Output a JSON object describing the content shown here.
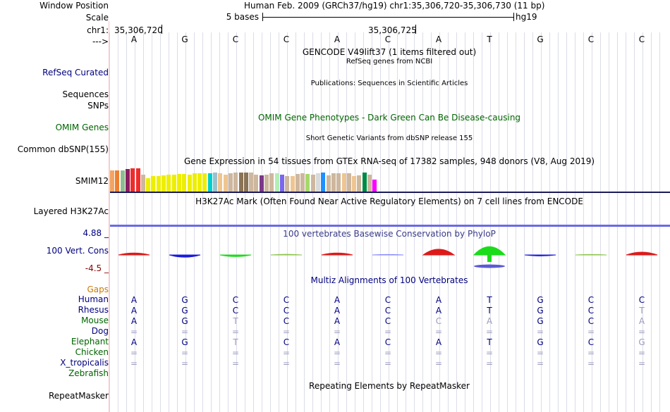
{
  "header": {
    "window_position_label": "Window Position",
    "window_position_value": "Human Feb. 2009 (GRCh37/hg19)   chr1:35,306,720-35,306,730 (11 bp)",
    "scale_label": "Scale",
    "scale_value": "5 bases",
    "scale_assembly": "hg19",
    "chrom_label": "chr1:",
    "coord_left": "35,306,720",
    "coord_mid": "35,306,725",
    "strand_label": "--->",
    "bases": [
      "A",
      "G",
      "C",
      "C",
      "A",
      "C",
      "A",
      "T",
      "G",
      "C",
      "C"
    ]
  },
  "tracks": {
    "gencode_title": "GENCODE V49lift37 (1 items filtered out)",
    "refseq_label": "RefSeq Curated",
    "refseq_title": "RefSeq genes from NCBI",
    "sequences_label": "Sequences",
    "publications_title": "Publications: Sequences in Scientific Articles",
    "snps_label": "SNPs",
    "omim_title": "OMIM Gene Phenotypes - Dark Green Can Be Disease-causing",
    "omim_label": "OMIM Genes",
    "dbsnp_title": "Short Genetic Variants from dbSNP release 155",
    "dbsnp_label": "Common dbSNP(155)",
    "gtex_title": "Gene Expression in 54 tissues from GTEx RNA-seq of 17382 samples, 948 donors (V8, Aug 2019)",
    "gtex_label": "SMIM12",
    "h3k27ac_title": "H3K27Ac Mark (Often Found Near Active Regulatory Elements) on 7 cell lines from ENCODE",
    "h3k27ac_label": "Layered H3K27Ac",
    "phylop_title": "100 vertebrates Basewise Conservation by PhyloP",
    "phylop_max": "4.88 _",
    "phylop_label": "100 Vert. Cons",
    "phylop_min": "-4.5 _",
    "multiz_title": "Multiz Alignments of 100 Vertebrates",
    "gaps_label": "Gaps",
    "repeat_title": "Repeating Elements by RepeatMasker",
    "repeat_label": "RepeatMasker"
  },
  "gtex_bars": [
    {
      "h": 0.84,
      "c": "#f4a460"
    },
    {
      "h": 0.84,
      "c": "#ee7f32"
    },
    {
      "h": 0.82,
      "c": "#8fbc8f"
    },
    {
      "h": 0.88,
      "c": "#8b1c62"
    },
    {
      "h": 0.92,
      "c": "#ee2c2c"
    },
    {
      "h": 0.92,
      "c": "#ee2c2c"
    },
    {
      "h": 0.68,
      "c": "#cdb79e"
    },
    {
      "h": 0.52,
      "c": "#eeee00"
    },
    {
      "h": 0.6,
      "c": "#eeee00"
    },
    {
      "h": 0.6,
      "c": "#eeee00"
    },
    {
      "h": 0.64,
      "c": "#eeee00"
    },
    {
      "h": 0.66,
      "c": "#eeee00"
    },
    {
      "h": 0.68,
      "c": "#eeee00"
    },
    {
      "h": 0.7,
      "c": "#eeee00"
    },
    {
      "h": 0.7,
      "c": "#eeee00"
    },
    {
      "h": 0.68,
      "c": "#eeee00"
    },
    {
      "h": 0.72,
      "c": "#eeee00"
    },
    {
      "h": 0.72,
      "c": "#eeee00"
    },
    {
      "h": 0.72,
      "c": "#eeee00"
    },
    {
      "h": 0.72,
      "c": "#00cdcd"
    },
    {
      "h": 0.74,
      "c": "#9ac0cd"
    },
    {
      "h": 0.72,
      "c": "#eec591"
    },
    {
      "h": 0.68,
      "c": "#eec591"
    },
    {
      "h": 0.72,
      "c": "#cdb79e"
    },
    {
      "h": 0.74,
      "c": "#cdb79e"
    },
    {
      "h": 0.74,
      "c": "#8b7355"
    },
    {
      "h": 0.74,
      "c": "#8b7355"
    },
    {
      "h": 0.74,
      "c": "#cdb79e"
    },
    {
      "h": 0.68,
      "c": "#cdb79e"
    },
    {
      "h": 0.64,
      "c": "#7a378b"
    },
    {
      "h": 0.68,
      "c": "#cdb79e"
    },
    {
      "h": 0.72,
      "c": "#cdb79e"
    },
    {
      "h": 0.72,
      "c": "#b4eeb4"
    },
    {
      "h": 0.68,
      "c": "#7a67ee"
    },
    {
      "h": 0.62,
      "c": "#cdb79e"
    },
    {
      "h": 0.6,
      "c": "#eec591"
    },
    {
      "h": 0.7,
      "c": "#cdb79e"
    },
    {
      "h": 0.72,
      "c": "#cdb79e"
    },
    {
      "h": 0.7,
      "c": "#a6d96a"
    },
    {
      "h": 0.66,
      "c": "#cdb79e"
    },
    {
      "h": 0.72,
      "c": "#d9d9d9"
    },
    {
      "h": 0.74,
      "c": "#1e90ff"
    },
    {
      "h": 0.64,
      "c": "#cdb79e"
    },
    {
      "h": 0.72,
      "c": "#cdb79e"
    },
    {
      "h": 0.72,
      "c": "#cdb79e"
    },
    {
      "h": 0.72,
      "c": "#eec591"
    },
    {
      "h": 0.72,
      "c": "#cdb79e"
    },
    {
      "h": 0.62,
      "c": "#eec591"
    },
    {
      "h": 0.64,
      "c": "#cdb79e"
    },
    {
      "h": 0.74,
      "c": "#008b45"
    },
    {
      "h": 0.68,
      "c": "#cdb79e"
    },
    {
      "h": 0.48,
      "c": "#ff00ff"
    }
  ],
  "phylop_scores": [
    {
      "v": 0.6,
      "c": "#dd1a1a"
    },
    {
      "v": -0.7,
      "c": "#1a1add"
    },
    {
      "v": -0.5,
      "c": "#1adc1a"
    },
    {
      "v": 0.2,
      "c": "#8bc34a"
    },
    {
      "v": 0.6,
      "c": "#dd1a1a"
    },
    {
      "v": 0.15,
      "c": "#8888ff"
    },
    {
      "v": 1.8,
      "c": "#dd1a1a"
    },
    {
      "v": 2.6,
      "c": "#1adc1a"
    },
    {
      "v": -0.3,
      "c": "#1a1add"
    },
    {
      "v": 0.15,
      "c": "#8bc34a"
    },
    {
      "v": 0.9,
      "c": "#dd1a1a"
    }
  ],
  "alignment": [
    {
      "species": "Human",
      "color": "#000080",
      "bases": [
        "A",
        "G",
        "C",
        "C",
        "A",
        "C",
        "A",
        "T",
        "G",
        "C",
        "C"
      ],
      "weak": []
    },
    {
      "species": "Rhesus",
      "color": "#000080",
      "bases": [
        "A",
        "G",
        "C",
        "C",
        "A",
        "C",
        "A",
        "T",
        "G",
        "C",
        "T"
      ],
      "weak": [
        10
      ]
    },
    {
      "species": "Mouse",
      "color": "#006400",
      "bases": [
        "A",
        "G",
        "T",
        "C",
        "A",
        "C",
        "C",
        "A",
        "G",
        "C",
        "A"
      ],
      "weak": [
        2,
        6,
        7,
        10
      ]
    },
    {
      "species": "Dog",
      "color": "#000080",
      "bases": [
        "=",
        "=",
        "=",
        "=",
        "=",
        "=",
        "=",
        "=",
        "=",
        "=",
        "="
      ],
      "weak": [
        0,
        1,
        2,
        3,
        4,
        5,
        6,
        7,
        8,
        9,
        10
      ]
    },
    {
      "species": "Elephant",
      "color": "#006400",
      "bases": [
        "A",
        "G",
        "T",
        "C",
        "A",
        "C",
        "A",
        "T",
        "G",
        "C",
        "G"
      ],
      "weak": [
        2,
        10
      ]
    },
    {
      "species": "Chicken",
      "color": "#006400",
      "bases": [
        "=",
        "=",
        "=",
        "=",
        "=",
        "=",
        "=",
        "=",
        "=",
        "=",
        "="
      ],
      "weak": [
        0,
        1,
        2,
        3,
        4,
        5,
        6,
        7,
        8,
        9,
        10
      ]
    },
    {
      "species": "X_tropicalis",
      "color": "#000080",
      "bases": [
        "=",
        "=",
        "=",
        "=",
        "=",
        "=",
        "=",
        "=",
        "=",
        "=",
        "="
      ],
      "weak": [
        0,
        1,
        2,
        3,
        4,
        5,
        6,
        7,
        8,
        9,
        10
      ]
    },
    {
      "species": "Zebrafish",
      "color": "#006400",
      "bases": [],
      "weak": []
    }
  ],
  "colors": {
    "label_navy": "#000080",
    "omim_green": "#006400",
    "gaps_orange": "#cc7a00",
    "phylop_min_red": "#8b0000",
    "grid": "#dcdce8",
    "left_border": "#f0c8c8"
  }
}
